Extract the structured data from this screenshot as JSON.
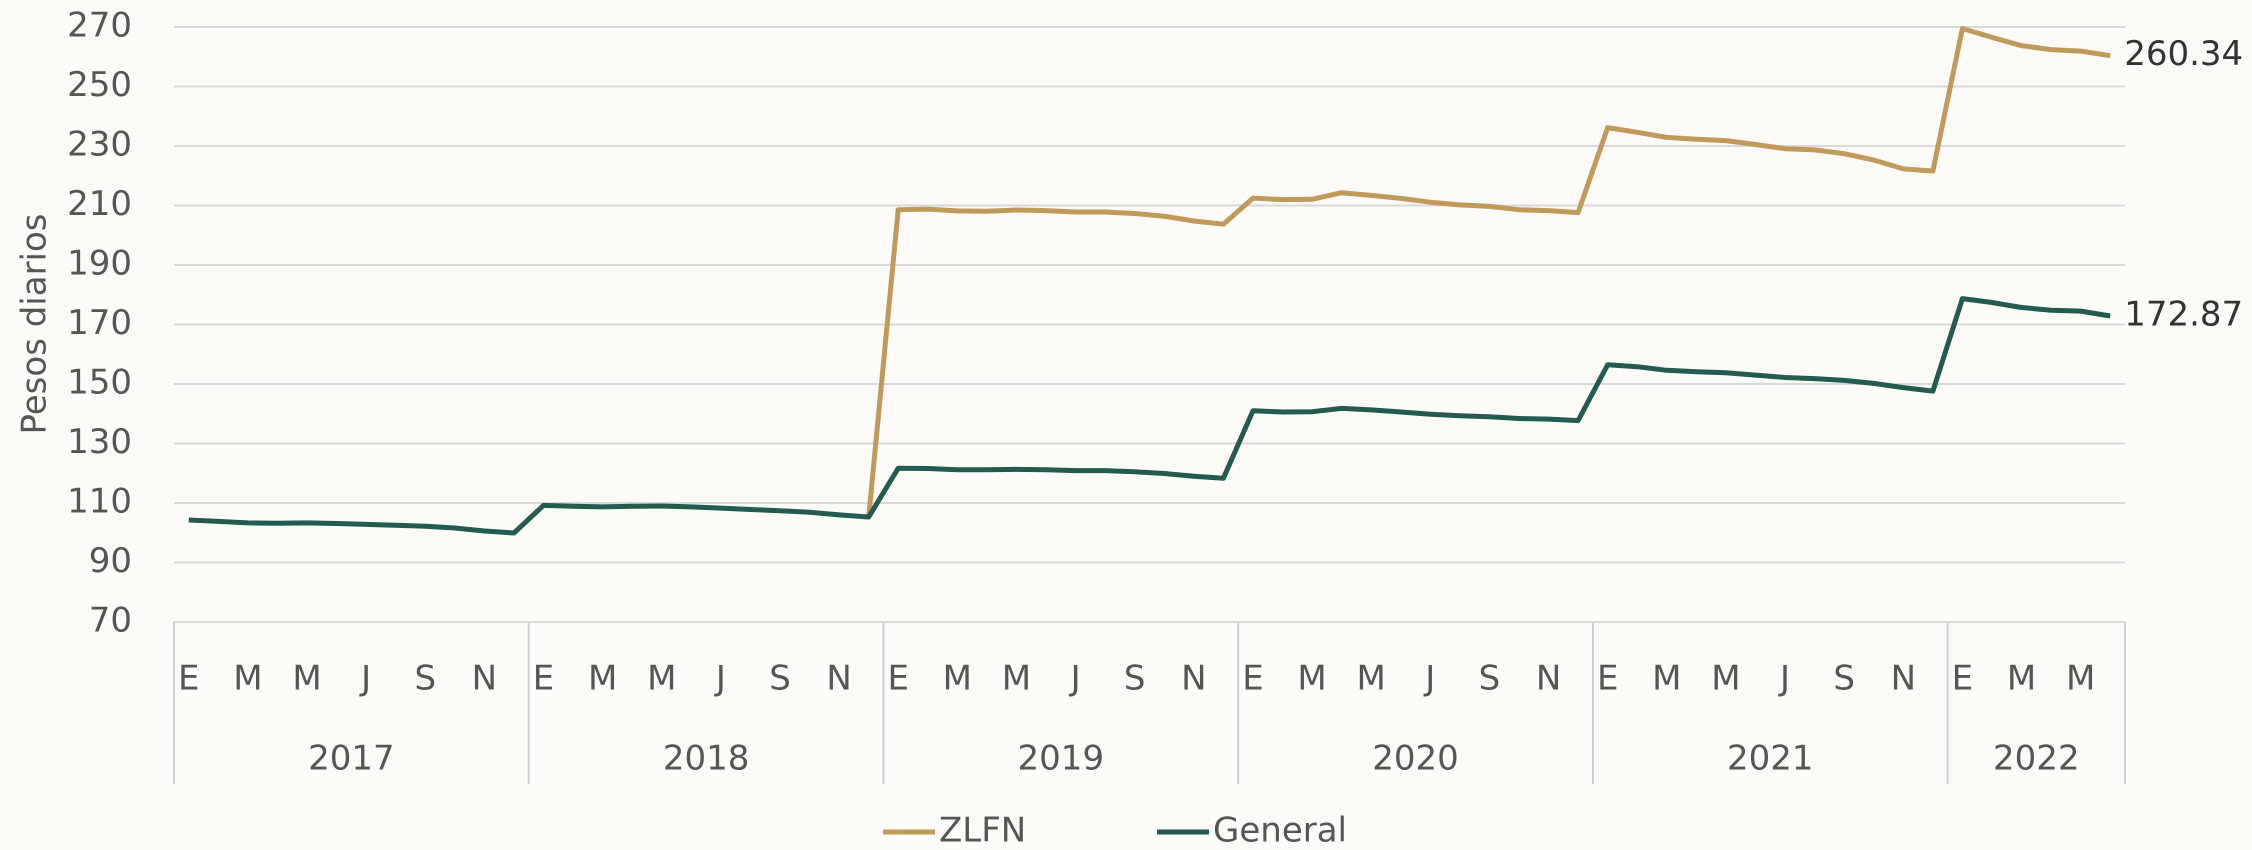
{
  "chart_data": {
    "type": "line",
    "y_label": "Pesos diarios",
    "categories": [
      "E",
      null,
      "M",
      null,
      "M",
      null,
      "J",
      null,
      "S",
      null,
      "N",
      null,
      "E",
      null,
      "M",
      null,
      "M",
      null,
      "J",
      null,
      "S",
      null,
      "N",
      null,
      "E",
      null,
      "M",
      null,
      "M",
      null,
      "J",
      null,
      "S",
      null,
      "N",
      null,
      "E",
      null,
      "M",
      null,
      "M",
      null,
      "J",
      null,
      "S",
      null,
      "N",
      null,
      "E",
      null,
      "M",
      null,
      "M",
      null,
      "J",
      null,
      "S",
      null,
      "N",
      null,
      "E",
      null,
      "M",
      null,
      "M",
      null
    ],
    "years": [
      "2017",
      "2018",
      "2019",
      "2020",
      "2021",
      "2022"
    ],
    "series": [
      {
        "name": "ZLFN",
        "color": "#c19a5b",
        "values": [
          null,
          null,
          null,
          null,
          null,
          null,
          null,
          null,
          null,
          null,
          null,
          null,
          null,
          null,
          null,
          null,
          null,
          null,
          null,
          null,
          null,
          null,
          null,
          105.3,
          208.6,
          208.8,
          208.2,
          208.1,
          208.5,
          208.3,
          207.8,
          207.8,
          207.3,
          206.4,
          204.8,
          203.7,
          212.5,
          212.0,
          212.1,
          214.3,
          213.4,
          212.4,
          211.1,
          210.2,
          209.7,
          208.6,
          208.3,
          207.6,
          236.2,
          234.6,
          232.9,
          232.3,
          231.8,
          230.5,
          229.1,
          228.7,
          227.4,
          225.3,
          222.3,
          221.6,
          269.5,
          266.5,
          263.7,
          262.4,
          261.9,
          260.34
        ]
      },
      {
        "name": "General",
        "color": "#235b4e",
        "values": [
          104.3,
          103.8,
          103.3,
          103.2,
          103.3,
          103.1,
          102.8,
          102.5,
          102.2,
          101.6,
          100.6,
          99.9,
          109.2,
          108.9,
          108.7,
          108.9,
          109.0,
          108.7,
          108.3,
          107.8,
          107.4,
          106.9,
          106.0,
          105.3,
          121.7,
          121.6,
          121.2,
          121.2,
          121.3,
          121.2,
          120.9,
          120.9,
          120.5,
          119.9,
          119.0,
          118.3,
          141.0,
          140.6,
          140.7,
          141.8,
          141.3,
          140.6,
          139.8,
          139.3,
          139.0,
          138.4,
          138.2,
          137.7,
          156.5,
          155.8,
          154.6,
          154.1,
          153.8,
          153.0,
          152.2,
          151.8,
          151.2,
          150.2,
          148.8,
          147.6,
          178.7,
          177.4,
          175.7,
          174.8,
          174.5,
          172.87
        ]
      }
    ],
    "ylim": [
      70,
      270
    ],
    "yticks": [
      70,
      90,
      110,
      130,
      150,
      170,
      190,
      210,
      230,
      250,
      270
    ],
    "grid": true,
    "legend": "bottom"
  }
}
